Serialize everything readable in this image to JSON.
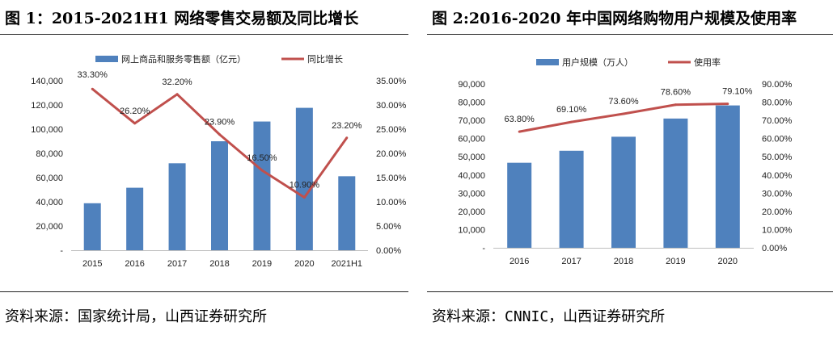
{
  "charts": [
    {
      "title": "图 1：2015-2021H1 网络零售交易额及同比增长",
      "source": "资料来源：国家统计局，山西证券研究所"
    },
    {
      "title": "图 2:2016-2020 年中国网络购物用户规模及使用率",
      "source": "资料来源：CNNIC，山西证券研究所"
    }
  ],
  "chart_data": [
    {
      "type": "bar",
      "categories": [
        "2015",
        "2016",
        "2017",
        "2018",
        "2019",
        "2020",
        "2021H1"
      ],
      "series": [
        {
          "name": "网上商品和服务零售额（亿元）",
          "kind": "bar",
          "axis": "left",
          "color": "#4f81bd",
          "values": [
            38800,
            51600,
            71800,
            90000,
            106300,
            117600,
            61100
          ]
        },
        {
          "name": "同比增长",
          "kind": "line",
          "axis": "right",
          "color": "#c0504d",
          "values": [
            33.3,
            26.2,
            32.2,
            23.9,
            16.5,
            10.9,
            23.2
          ],
          "labels": [
            "33.30%",
            "26.20%",
            "32.20%",
            "23.90%",
            "16.50%",
            "10.90%",
            "23.20%"
          ]
        }
      ],
      "ylim": [
        0,
        140000
      ],
      "y_ticks": [
        "-",
        "20,000",
        "40,000",
        "60,000",
        "80,000",
        "100,000",
        "120,000",
        "140,000"
      ],
      "y2lim": [
        0,
        35
      ],
      "y2_ticks": [
        "0.00%",
        "5.00%",
        "10.00%",
        "15.00%",
        "20.00%",
        "25.00%",
        "30.00%",
        "35.00%"
      ],
      "legend_position": "top",
      "grid": false
    },
    {
      "type": "bar",
      "categories": [
        "2016",
        "2017",
        "2018",
        "2019",
        "2020"
      ],
      "series": [
        {
          "name": "用户规模（万人）",
          "kind": "bar",
          "axis": "left",
          "color": "#4f81bd",
          "values": [
            46700,
            53300,
            61000,
            71000,
            78200
          ]
        },
        {
          "name": "使用率",
          "kind": "line",
          "axis": "right",
          "color": "#c0504d",
          "values": [
            63.8,
            69.1,
            73.6,
            78.6,
            79.1
          ],
          "labels": [
            "63.80%",
            "69.10%",
            "73.60%",
            "78.60%",
            "79.10%"
          ]
        }
      ],
      "ylim": [
        0,
        90000
      ],
      "y_ticks": [
        "-",
        "10,000",
        "20,000",
        "30,000",
        "40,000",
        "50,000",
        "60,000",
        "70,000",
        "80,000",
        "90,000"
      ],
      "y2lim": [
        0,
        90
      ],
      "y2_ticks": [
        "0.00%",
        "10.00%",
        "20.00%",
        "30.00%",
        "40.00%",
        "50.00%",
        "60.00%",
        "70.00%",
        "80.00%",
        "90.00%"
      ],
      "legend_position": "top",
      "grid": false
    }
  ]
}
